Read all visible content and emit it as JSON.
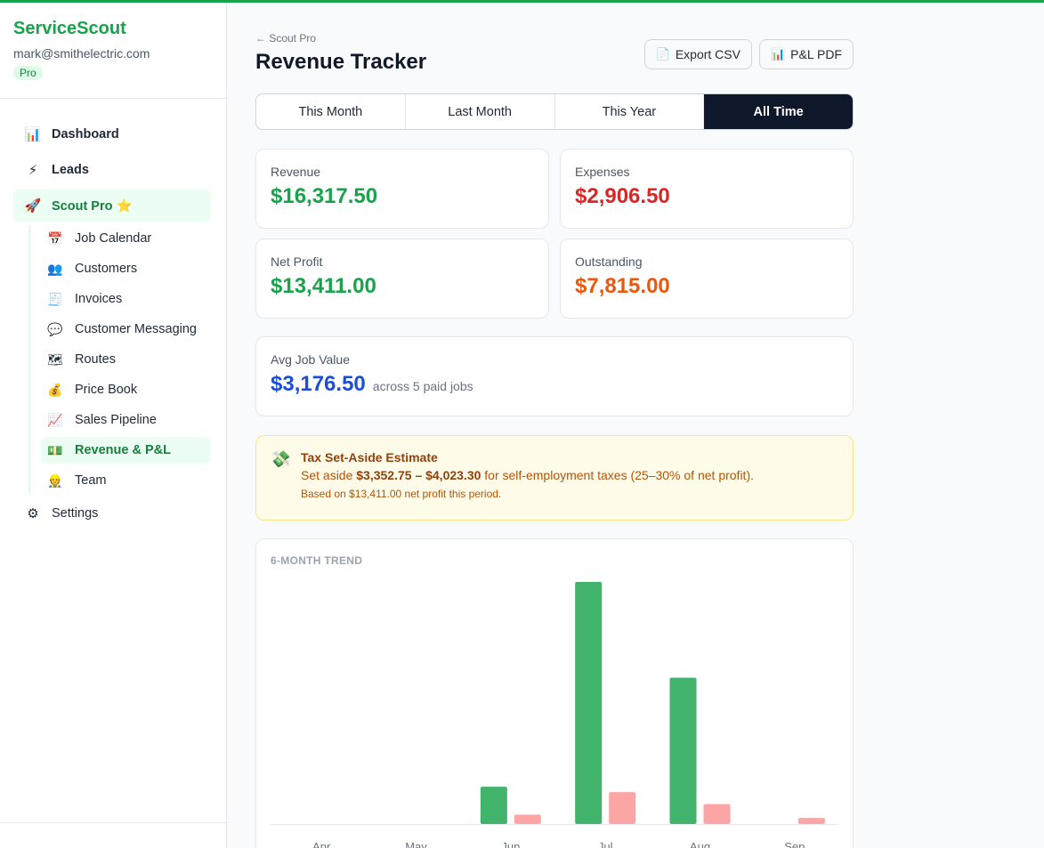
{
  "sidebar": {
    "brand": "ServiceScout",
    "email": "mark@smithelectric.com",
    "plan": "Pro",
    "items": [
      {
        "label": "Dashboard",
        "icon": "📊"
      },
      {
        "label": "Leads",
        "icon": "⚡"
      },
      {
        "label": "Scout Pro ⭐",
        "icon": "🚀"
      }
    ],
    "subitems": [
      {
        "label": "Job Calendar",
        "icon": "📅"
      },
      {
        "label": "Customers",
        "icon": "👥"
      },
      {
        "label": "Invoices",
        "icon": "🧾"
      },
      {
        "label": "Customer Messaging",
        "icon": "💬"
      },
      {
        "label": "Routes",
        "icon": "🗺"
      },
      {
        "label": "Price Book",
        "icon": "💰"
      },
      {
        "label": "Sales Pipeline",
        "icon": "📈"
      },
      {
        "label": "Revenue & P&L",
        "icon": "💵"
      },
      {
        "label": "Team",
        "icon": "👷"
      }
    ],
    "settings": {
      "label": "Settings",
      "icon": "⚙"
    }
  },
  "header": {
    "breadcrumb": "← Scout Pro",
    "title": "Revenue Tracker",
    "export_csv": "Export CSV",
    "export_csv_icon": "📄",
    "pl_pdf": "P&L PDF",
    "pl_pdf_icon": "📊"
  },
  "tabs": [
    "This Month",
    "Last Month",
    "This Year",
    "All Time"
  ],
  "active_tab": "All Time",
  "stats": {
    "revenue": {
      "label": "Revenue",
      "value": "$16,317.50"
    },
    "expenses": {
      "label": "Expenses",
      "value": "$2,906.50"
    },
    "net_profit": {
      "label": "Net Profit",
      "value": "$13,411.00"
    },
    "outstanding": {
      "label": "Outstanding",
      "value": "$7,815.00"
    },
    "avg_job": {
      "label": "Avg Job Value",
      "value": "$3,176.50",
      "sub": "across 5 paid jobs"
    }
  },
  "tax": {
    "icon": "💸",
    "title": "Tax Set-Aside Estimate",
    "prefix": "Set aside ",
    "range": "$3,352.75 – $4,023.30",
    "suffix": " for self-employment taxes (25–30% of net profit).",
    "note": "Based on $13,411.00 net profit this period."
  },
  "colors": {
    "brand": "#16a34a",
    "revenue_bar": "#41b36a",
    "expense_bar": "#fca5a5"
  },
  "chart_data": {
    "type": "bar",
    "title": "6-MONTH TREND",
    "categories": [
      "Apr",
      "May",
      "Jun",
      "Jul",
      "Aug",
      "Sep"
    ],
    "series": [
      {
        "values": [
          0,
          0,
          1400,
          9100,
          5500,
          0
        ]
      },
      {
        "values": [
          0,
          0,
          350,
          1200,
          750,
          230
        ]
      }
    ],
    "ylim": [
      0,
      9100
    ],
    "grid": false
  }
}
